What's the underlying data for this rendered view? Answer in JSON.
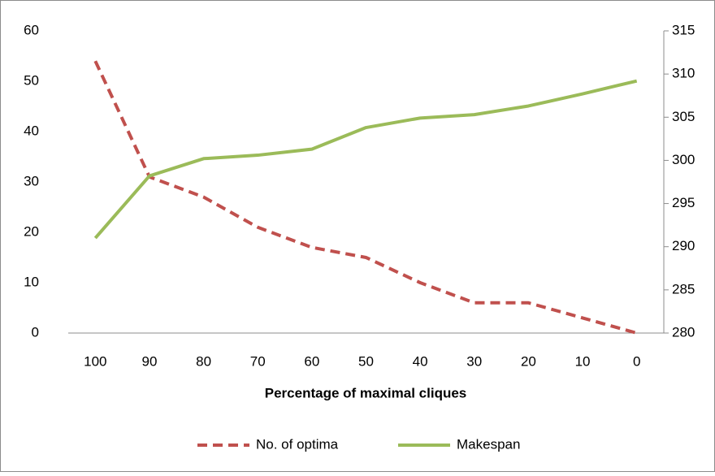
{
  "chart_data": {
    "type": "line",
    "x_label": "Percentage of maximal cliques",
    "categories": [
      "100",
      "90",
      "80",
      "70",
      "60",
      "50",
      "40",
      "30",
      "20",
      "10",
      "0"
    ],
    "series": [
      {
        "name": "No. of optima",
        "color": "#c0504d",
        "dash": true,
        "values": [
          54,
          31,
          27,
          21,
          17,
          15,
          10,
          6,
          6,
          3,
          0
        ]
      },
      {
        "name": "Makespan",
        "color": "#9bbb59",
        "axis": "y2",
        "values": [
          291,
          298.2,
          300.2,
          300.6,
          301.3,
          303.8,
          304.9,
          305.3,
          306.3,
          307.7,
          309.2
        ]
      }
    ],
    "ylim": [
      0,
      60
    ],
    "yticks": [
      0,
      10,
      20,
      30,
      40,
      50,
      60
    ],
    "y2lim": [
      280,
      315
    ],
    "y2ticks": [
      280,
      285,
      290,
      295,
      300,
      305,
      310,
      315
    ],
    "legend": "bottom"
  }
}
